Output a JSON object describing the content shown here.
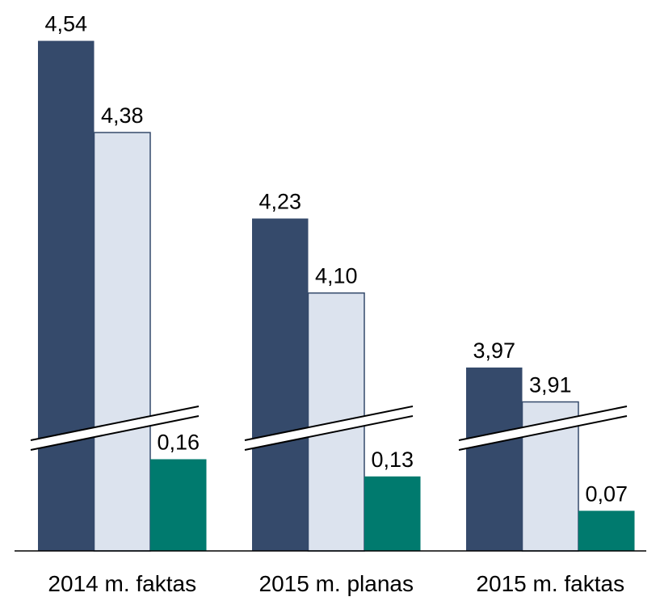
{
  "chart_data": {
    "type": "bar",
    "categories": [
      "2014 m. faktas",
      "2015 m. planas",
      "2015 m. faktas"
    ],
    "series": [
      {
        "color": "#354a6b",
        "values": [
          4.54,
          4.23,
          3.97
        ],
        "value_labels": [
          "4,54",
          "4,23",
          "3,97"
        ]
      },
      {
        "color": "#dce3ee",
        "values": [
          4.38,
          4.1,
          3.91
        ],
        "value_labels": [
          "4,38",
          "4,10",
          "3,91"
        ]
      },
      {
        "color": "#007a6e",
        "values": [
          0.16,
          0.13,
          0.07
        ],
        "value_labels": [
          "0,16",
          "0,13",
          "0,07"
        ]
      }
    ],
    "ylim": [
      0,
      4.6
    ],
    "axis_break": [
      0.2,
      3.85
    ]
  }
}
